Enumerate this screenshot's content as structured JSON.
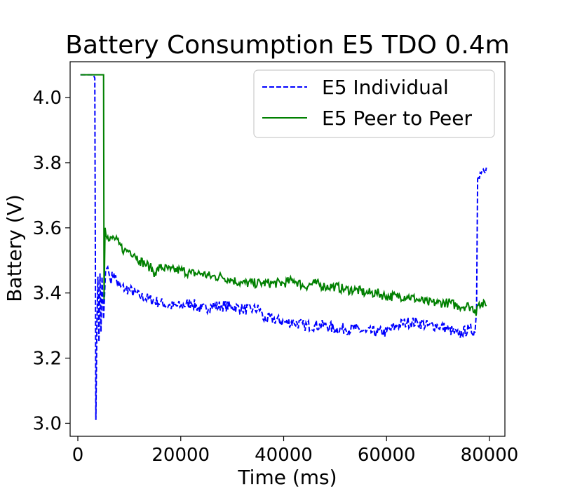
{
  "chart_data": {
    "type": "line",
    "title": "Battery Consumption E5 TDO 0.4m",
    "xlabel": "Time (ms)",
    "ylabel": "Battery (V)",
    "xlim": [
      -1500,
      83000
    ],
    "ylim": [
      2.96,
      4.11
    ],
    "xticks": [
      0,
      20000,
      40000,
      60000,
      80000
    ],
    "xtick_labels": [
      "0",
      "20000",
      "40000",
      "60000",
      "80000"
    ],
    "yticks": [
      3.0,
      3.2,
      3.4,
      3.6,
      3.8,
      4.0
    ],
    "ytick_labels": [
      "3.0",
      "3.2",
      "3.4",
      "3.6",
      "3.8",
      "4.0"
    ],
    "legend_position": "upper-right",
    "series": [
      {
        "name": "E5 Individual",
        "color": "#0000ff",
        "style": "dashed",
        "points": [
          [
            500,
            4.07
          ],
          [
            3000,
            4.07
          ],
          [
            3300,
            4.06
          ],
          [
            3500,
            3.01
          ],
          [
            3700,
            3.3
          ],
          [
            3900,
            3.45
          ],
          [
            4100,
            3.25
          ],
          [
            4300,
            3.46
          ],
          [
            4500,
            3.28
          ],
          [
            4700,
            3.45
          ],
          [
            5000,
            3.32
          ],
          [
            5400,
            3.47
          ],
          [
            5800,
            3.48
          ],
          [
            6300,
            3.44
          ],
          [
            7000,
            3.46
          ],
          [
            8000,
            3.42
          ],
          [
            10000,
            3.41
          ],
          [
            12000,
            3.39
          ],
          [
            14000,
            3.38
          ],
          [
            16000,
            3.37
          ],
          [
            18000,
            3.36
          ],
          [
            20000,
            3.36
          ],
          [
            22000,
            3.37
          ],
          [
            24000,
            3.35
          ],
          [
            26000,
            3.36
          ],
          [
            28000,
            3.36
          ],
          [
            30000,
            3.36
          ],
          [
            32000,
            3.35
          ],
          [
            34000,
            3.35
          ],
          [
            35500,
            3.35
          ],
          [
            36000,
            3.32
          ],
          [
            38000,
            3.32
          ],
          [
            40000,
            3.31
          ],
          [
            42000,
            3.31
          ],
          [
            44000,
            3.3
          ],
          [
            46000,
            3.3
          ],
          [
            48000,
            3.3
          ],
          [
            50000,
            3.29
          ],
          [
            52000,
            3.29
          ],
          [
            54000,
            3.29
          ],
          [
            56000,
            3.28
          ],
          [
            58000,
            3.28
          ],
          [
            60000,
            3.28
          ],
          [
            62000,
            3.3
          ],
          [
            64000,
            3.31
          ],
          [
            66000,
            3.31
          ],
          [
            68000,
            3.3
          ],
          [
            70000,
            3.3
          ],
          [
            72000,
            3.29
          ],
          [
            74000,
            3.27
          ],
          [
            76000,
            3.29
          ],
          [
            77200,
            3.28
          ],
          [
            77500,
            3.35
          ],
          [
            77700,
            3.75
          ],
          [
            78200,
            3.77
          ],
          [
            78800,
            3.78
          ],
          [
            79400,
            3.785
          ]
        ]
      },
      {
        "name": "E5 Peer to Peer",
        "color": "#008000",
        "style": "solid",
        "points": [
          [
            500,
            4.07
          ],
          [
            4800,
            4.07
          ],
          [
            5000,
            4.07
          ],
          [
            5100,
            3.38
          ],
          [
            5300,
            3.6
          ],
          [
            6000,
            3.56
          ],
          [
            7000,
            3.57
          ],
          [
            8000,
            3.55
          ],
          [
            9000,
            3.53
          ],
          [
            10000,
            3.53
          ],
          [
            11000,
            3.52
          ],
          [
            12000,
            3.5
          ],
          [
            13000,
            3.49
          ],
          [
            14000,
            3.48
          ],
          [
            15000,
            3.46
          ],
          [
            16000,
            3.48
          ],
          [
            18000,
            3.47
          ],
          [
            20000,
            3.47
          ],
          [
            22000,
            3.46
          ],
          [
            24000,
            3.46
          ],
          [
            26000,
            3.45
          ],
          [
            28000,
            3.45
          ],
          [
            30000,
            3.44
          ],
          [
            32000,
            3.43
          ],
          [
            34000,
            3.43
          ],
          [
            36000,
            3.43
          ],
          [
            38000,
            3.43
          ],
          [
            40000,
            3.43
          ],
          [
            42000,
            3.44
          ],
          [
            44000,
            3.42
          ],
          [
            46000,
            3.43
          ],
          [
            48000,
            3.42
          ],
          [
            50000,
            3.42
          ],
          [
            52000,
            3.41
          ],
          [
            54000,
            3.41
          ],
          [
            56000,
            3.4
          ],
          [
            58000,
            3.4
          ],
          [
            60000,
            3.39
          ],
          [
            62000,
            3.39
          ],
          [
            64000,
            3.39
          ],
          [
            66000,
            3.38
          ],
          [
            68000,
            3.37
          ],
          [
            70000,
            3.37
          ],
          [
            72000,
            3.37
          ],
          [
            74000,
            3.36
          ],
          [
            76000,
            3.36
          ],
          [
            77200,
            3.35
          ],
          [
            77400,
            3.33
          ],
          [
            77600,
            3.36
          ],
          [
            78000,
            3.37
          ],
          [
            79400,
            3.36
          ]
        ]
      }
    ]
  }
}
